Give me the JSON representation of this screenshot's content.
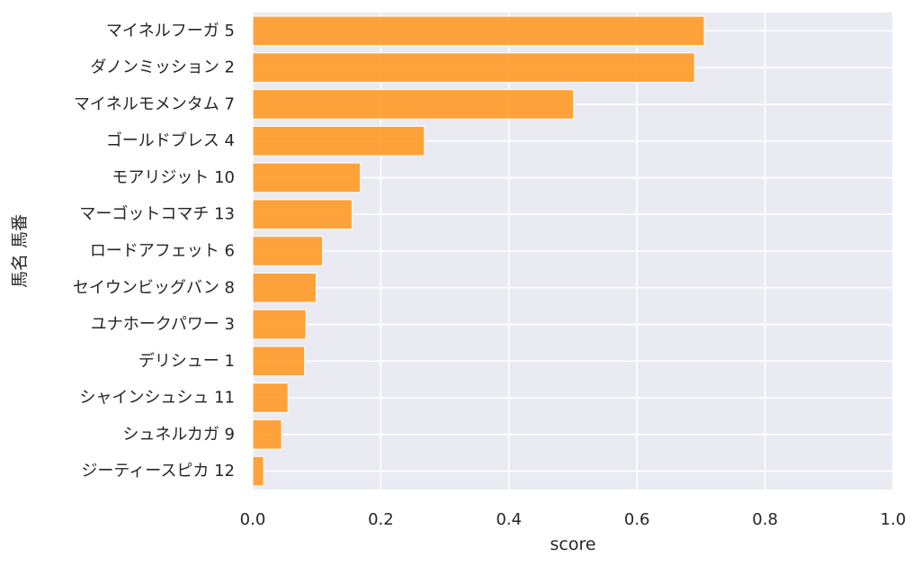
{
  "chart_data": {
    "type": "bar",
    "orientation": "horizontal",
    "xlabel": "score",
    "ylabel": "馬名 馬番",
    "xlim": [
      0.0,
      1.0
    ],
    "xticks": [
      "0.0",
      "0.2",
      "0.4",
      "0.6",
      "0.8",
      "1.0"
    ],
    "grid": true,
    "categories": [
      "マイネルフーガ 5",
      "ダノンミッション 2",
      "マイネルモメンタム 7",
      "ゴールドブレス 4",
      "モアリジット 10",
      "マーゴットコマチ 13",
      "ロードアフェット 6",
      "セイウンビッグバン 8",
      "ユナホークパワー 3",
      "デリシュー 1",
      "シャインシュシュ 11",
      "シュネルカガ 9",
      "ジーティースピカ 12"
    ],
    "values": [
      0.705,
      0.69,
      0.501,
      0.268,
      0.168,
      0.155,
      0.109,
      0.099,
      0.083,
      0.081,
      0.055,
      0.045,
      0.017
    ],
    "colors": {
      "bar": "#ff9a26",
      "plot_background": "#eaeaf2",
      "grid": "#ffffff",
      "text": "#262626"
    }
  }
}
